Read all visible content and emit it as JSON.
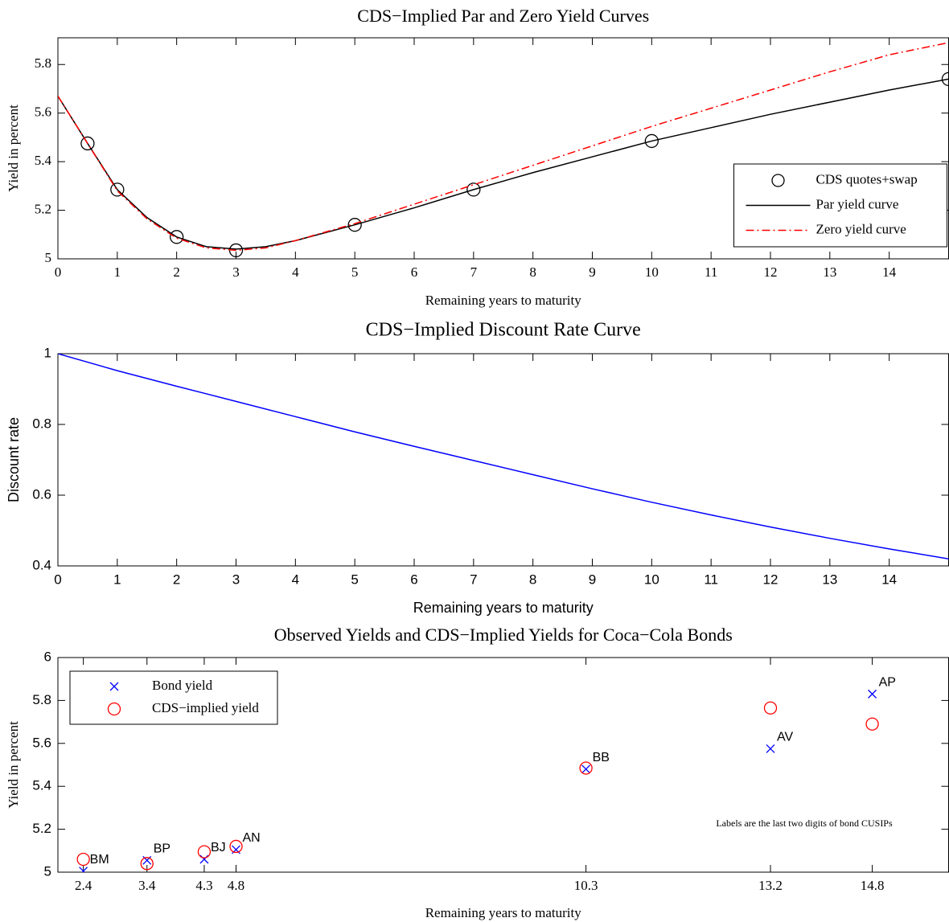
{
  "chart_data": [
    {
      "type": "line",
      "title": "CDS−Implied Par and Zero Yield Curves",
      "xlabel": "Remaining years to maturity",
      "ylabel": "Yield in percent",
      "xlim": [
        0,
        15
      ],
      "ylim": [
        5,
        5.91
      ],
      "xticks": [
        0,
        1,
        2,
        3,
        4,
        5,
        6,
        7,
        8,
        9,
        10,
        11,
        12,
        13,
        14
      ],
      "yticks": [
        5,
        5.2,
        5.4,
        5.6,
        5.8
      ],
      "legend": "lower right",
      "series": [
        {
          "name": "CDS quotes+swap",
          "color": "#000000",
          "marker": "o",
          "line": "none",
          "x": [
            0.5,
            1,
            2,
            3,
            5,
            7,
            10,
            15
          ],
          "values": [
            5.475,
            5.285,
            5.09,
            5.035,
            5.14,
            5.285,
            5.485,
            5.74
          ]
        },
        {
          "name": "Par yield curve",
          "color": "#000000",
          "marker": "none",
          "line": "solid",
          "x": [
            0,
            0.5,
            1,
            1.5,
            2,
            2.5,
            3,
            3.5,
            4,
            5,
            6,
            7,
            8,
            9,
            10,
            11,
            12,
            13,
            14,
            15
          ],
          "values": [
            5.67,
            5.475,
            5.285,
            5.17,
            5.09,
            5.05,
            5.04,
            5.05,
            5.075,
            5.14,
            5.21,
            5.285,
            5.355,
            5.42,
            5.485,
            5.54,
            5.595,
            5.645,
            5.695,
            5.74
          ]
        },
        {
          "name": "Zero yield curve",
          "color": "#ff0000",
          "marker": "none",
          "line": "dashdot",
          "x": [
            0,
            0.5,
            1,
            1.5,
            2,
            2.5,
            3,
            3.5,
            4,
            5,
            6,
            7,
            8,
            9,
            10,
            11,
            12,
            13,
            14,
            15
          ],
          "values": [
            5.67,
            5.475,
            5.28,
            5.165,
            5.085,
            5.045,
            5.035,
            5.045,
            5.075,
            5.145,
            5.225,
            5.305,
            5.385,
            5.465,
            5.545,
            5.62,
            5.695,
            5.77,
            5.84,
            5.89
          ]
        }
      ]
    },
    {
      "type": "line",
      "title": "CDS−Implied Discount Rate Curve",
      "xlabel": "Remaining years to maturity",
      "ylabel": "Discount rate",
      "xlim": [
        0,
        15
      ],
      "ylim": [
        0.4,
        1
      ],
      "xticks": [
        0,
        1,
        2,
        3,
        4,
        5,
        6,
        7,
        8,
        9,
        10,
        11,
        12,
        13,
        14
      ],
      "yticks": [
        0.4,
        0.6,
        0.8,
        1
      ],
      "series": [
        {
          "color": "#0000ff",
          "marker": "none",
          "line": "solid",
          "x": [
            0,
            1,
            2,
            3,
            4,
            5,
            6,
            7,
            8,
            9,
            10,
            11,
            12,
            13,
            14,
            15
          ],
          "values": [
            1,
            0.952,
            0.908,
            0.865,
            0.822,
            0.779,
            0.738,
            0.698,
            0.658,
            0.618,
            0.58,
            0.544,
            0.51,
            0.478,
            0.448,
            0.42
          ]
        }
      ]
    },
    {
      "type": "scatter",
      "title": "Observed Yields and CDS−Implied Yields for Coca−Cola Bonds",
      "xlabel": "Remaining years to maturity",
      "ylabel": "Yield in percent",
      "xlim": [
        2,
        16
      ],
      "ylim": [
        5,
        6
      ],
      "xticks": [
        2.4,
        3.4,
        4.3,
        4.8,
        10.3,
        13.2,
        14.8
      ],
      "yticks": [
        5,
        5.2,
        5.4,
        5.6,
        5.8,
        6
      ],
      "legend": "upper left",
      "annotation": "Labels are the last two digits of bond CUSIPs",
      "series": [
        {
          "name": "Bond yield",
          "color": "#0000ff",
          "marker": "x",
          "x": [
            2.4,
            3.4,
            4.3,
            4.8,
            10.3,
            13.2,
            14.8
          ],
          "values": [
            5.005,
            5.055,
            5.06,
            5.105,
            5.48,
            5.575,
            5.83
          ],
          "labels": [
            "BM",
            "BP",
            "BJ",
            "AN",
            "BB",
            "AV",
            "AP"
          ]
        },
        {
          "name": "CDS−implied yield",
          "color": "#ff0000",
          "marker": "o",
          "x": [
            2.4,
            3.4,
            4.3,
            4.8,
            10.3,
            13.2,
            14.8
          ],
          "values": [
            5.06,
            5.04,
            5.095,
            5.12,
            5.485,
            5.765,
            5.69
          ]
        }
      ]
    }
  ]
}
